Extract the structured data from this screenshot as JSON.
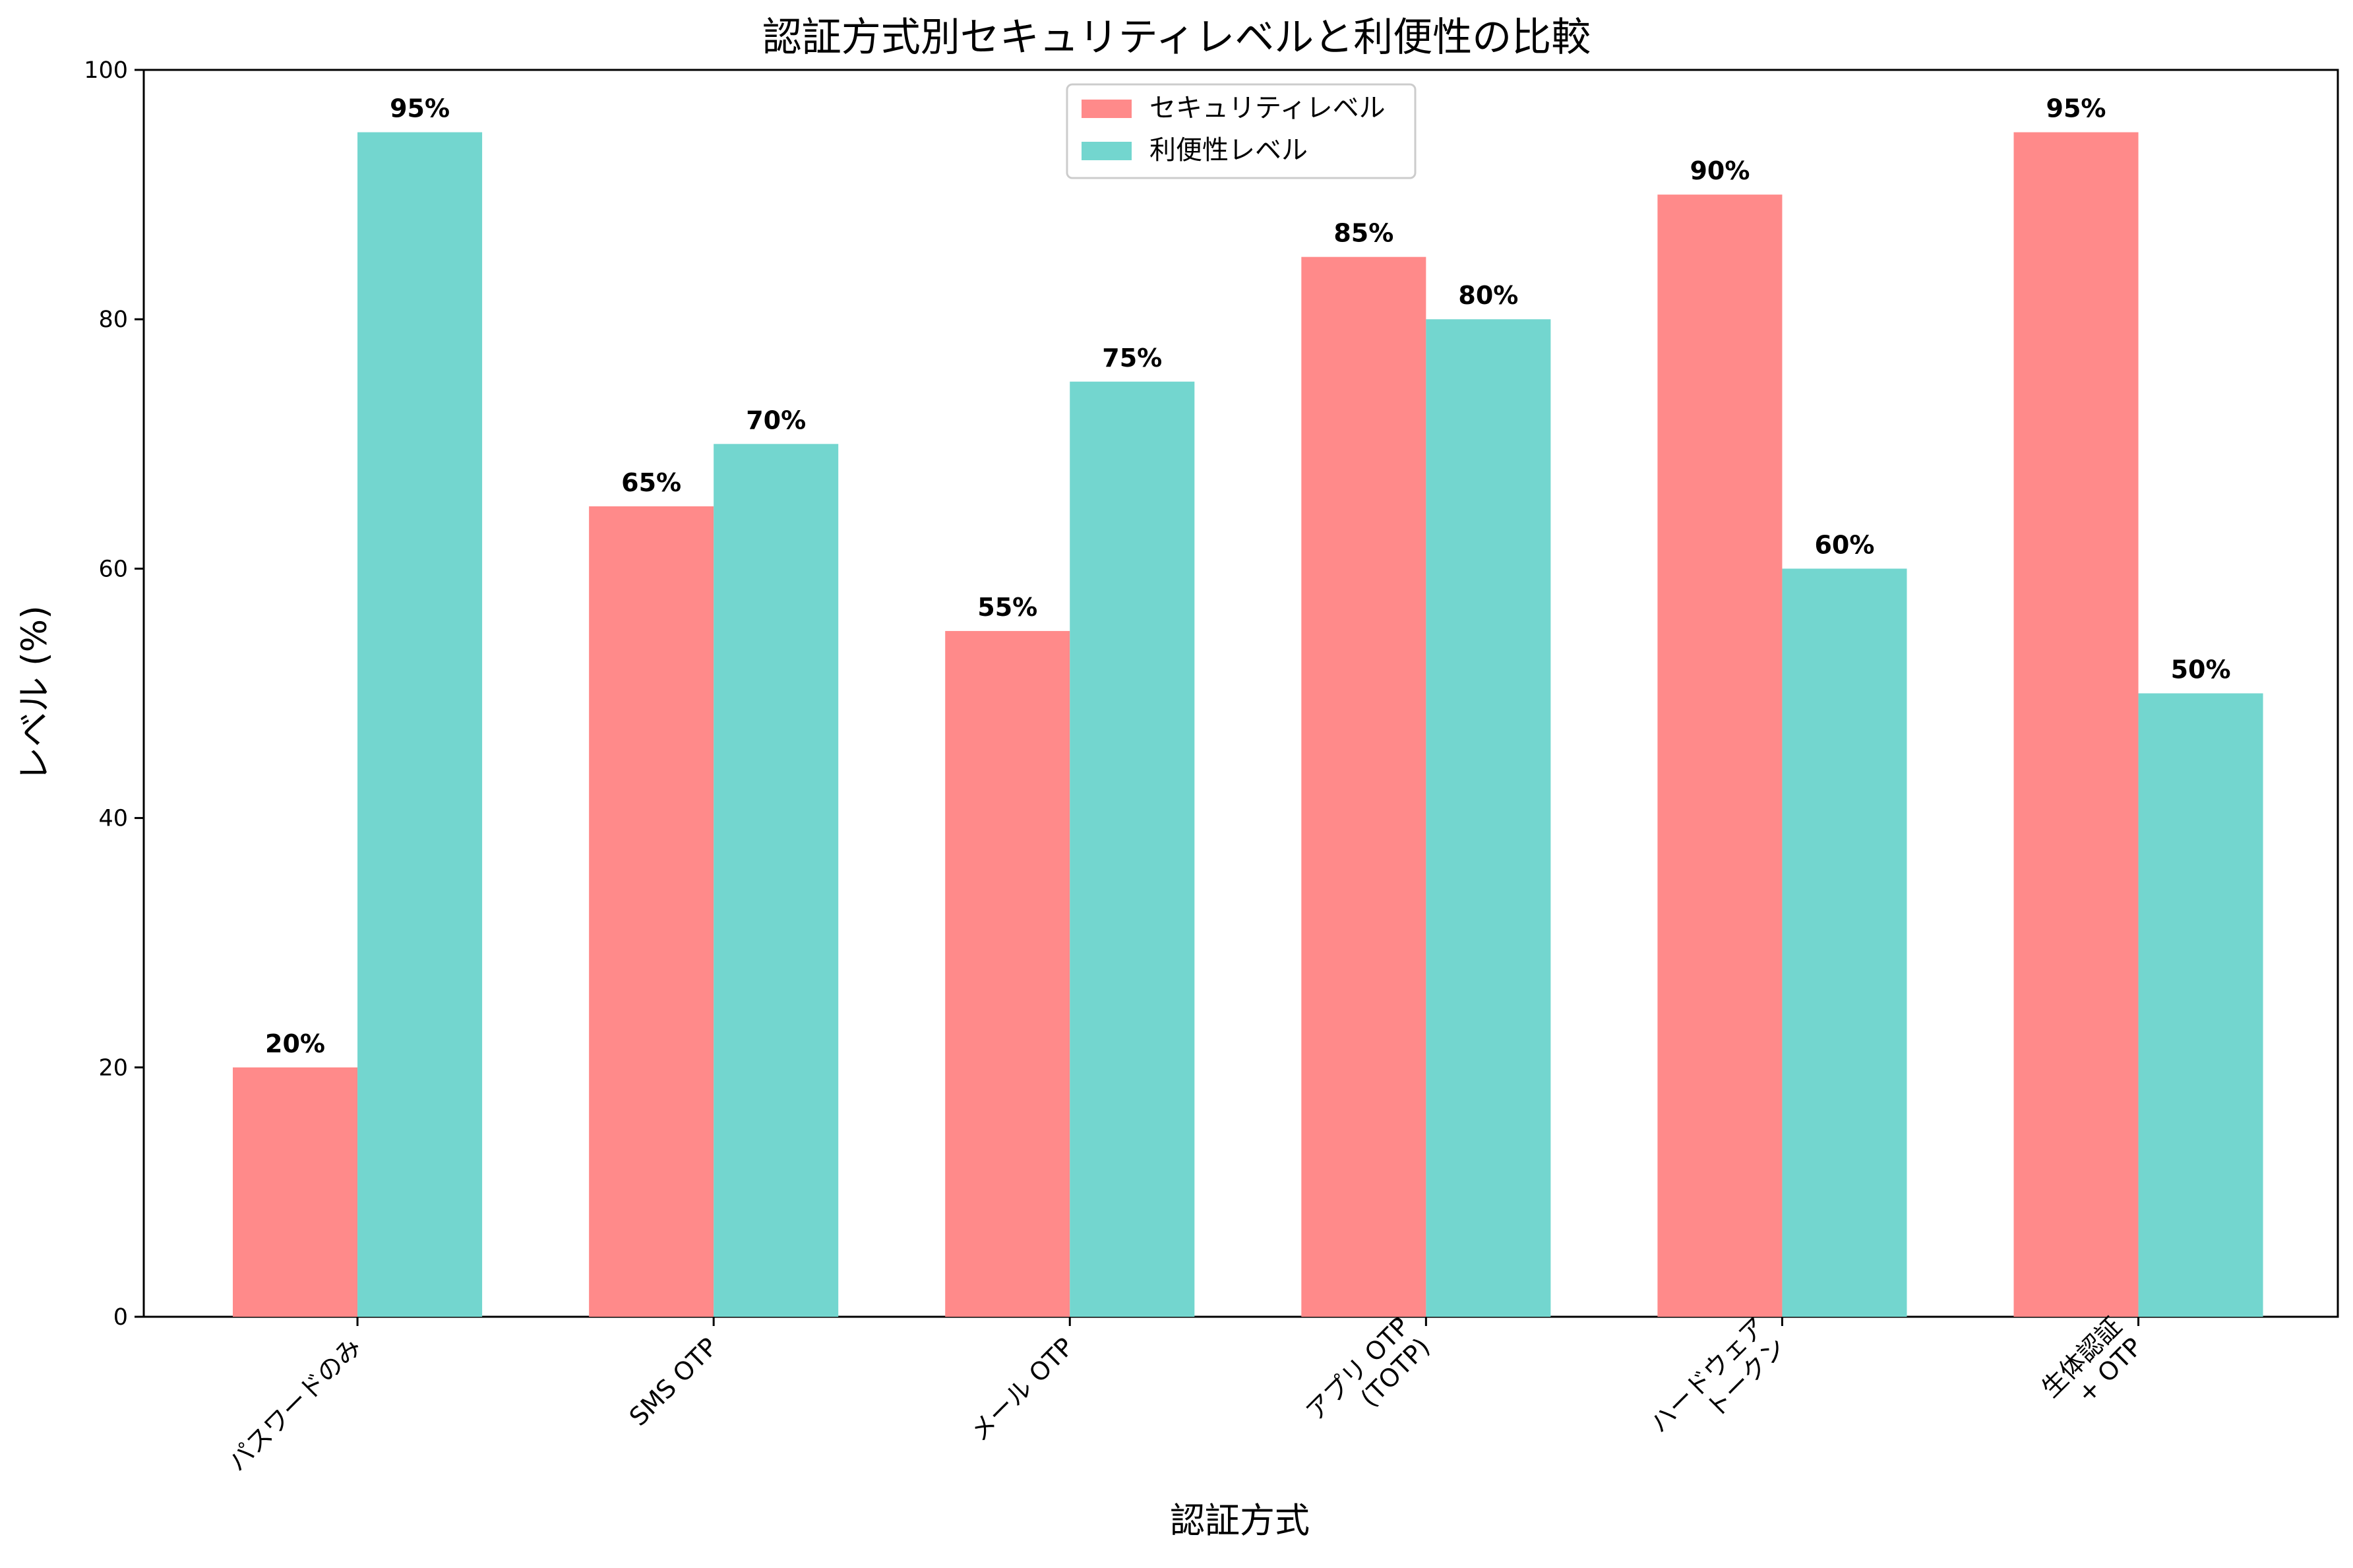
{
  "chart_data": {
    "type": "bar",
    "title": "認証方式別セキュリティレベルと利便性の比較",
    "xlabel": "認証方式",
    "ylabel": "レベル (%)",
    "ylim": [
      0,
      100
    ],
    "yticks": [
      0,
      20,
      40,
      60,
      80,
      100
    ],
    "grid": false,
    "legend_position": "top-center",
    "categories": [
      [
        "パスワードのみ"
      ],
      [
        "SMS OTP"
      ],
      [
        "メール OTP"
      ],
      [
        "アプリ OTP",
        "(TOTP)"
      ],
      [
        "ハードウェア",
        "トークン"
      ],
      [
        "生体認証",
        "+ OTP"
      ]
    ],
    "series": [
      {
        "name": "セキュリティレベル",
        "color": "#FF8A8A",
        "values": [
          20,
          65,
          55,
          85,
          90,
          95
        ],
        "labels": [
          "20%",
          "65%",
          "55%",
          "85%",
          "90%",
          "95%"
        ]
      },
      {
        "name": "利便性レベル",
        "color": "#73D6CF",
        "values": [
          95,
          70,
          75,
          80,
          60,
          50
        ],
        "labels": [
          "95%",
          "70%",
          "75%",
          "80%",
          "60%",
          "50%"
        ]
      }
    ]
  }
}
